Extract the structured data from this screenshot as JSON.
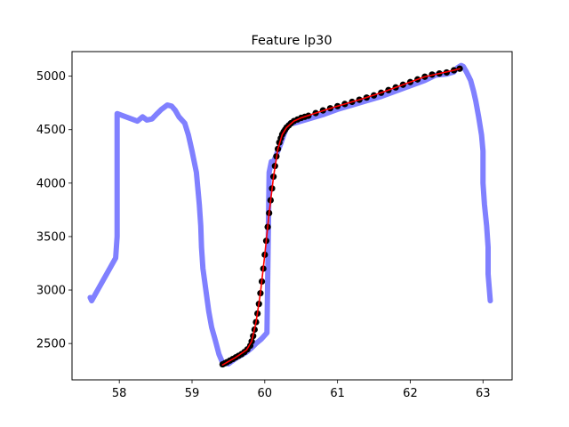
{
  "chart_data": {
    "type": "line",
    "title": "Feature lp30",
    "xlabel": "",
    "ylabel": "",
    "xlim": [
      57.35,
      63.4
    ],
    "ylim": [
      2160,
      5230
    ],
    "xticks": [
      58,
      59,
      60,
      61,
      62,
      63
    ],
    "yticks": [
      2500,
      3000,
      3500,
      4000,
      4500,
      5000
    ],
    "grid": false,
    "legend": "none",
    "series": [
      {
        "role": "trace",
        "style": "thick-line",
        "color": "#8080ff",
        "x": [
          57.6,
          57.62,
          57.95,
          57.97,
          57.97,
          58.25,
          58.32,
          58.38,
          58.45,
          58.52,
          58.58,
          58.66,
          58.72,
          58.77,
          58.82,
          58.9,
          58.95,
          59.0,
          59.03,
          59.06,
          59.1,
          59.12,
          59.13,
          59.15,
          59.17,
          59.2,
          59.23,
          59.27,
          59.32,
          59.37,
          59.42,
          59.5,
          59.6,
          59.7,
          59.75,
          59.82,
          59.88,
          59.95,
          60.03,
          60.06,
          60.09,
          60.12,
          60.15,
          60.18,
          60.22,
          60.26,
          60.3,
          60.35,
          60.4,
          60.5,
          60.6,
          60.8,
          61.0,
          61.2,
          61.4,
          61.6,
          61.8,
          62.0,
          62.2,
          62.35,
          62.5,
          62.6,
          62.65,
          62.7,
          62.73,
          62.78,
          62.83,
          62.87,
          62.9,
          62.94,
          62.98,
          63.0,
          63.0,
          63.02,
          63.05,
          63.07,
          63.07,
          63.1
        ],
        "y": [
          2930,
          2900,
          3300,
          3500,
          4650,
          4580,
          4620,
          4590,
          4600,
          4650,
          4690,
          4730,
          4720,
          4680,
          4620,
          4560,
          4450,
          4300,
          4200,
          4100,
          3800,
          3600,
          3400,
          3200,
          3100,
          2950,
          2800,
          2650,
          2530,
          2400,
          2320,
          2310,
          2360,
          2400,
          2420,
          2460,
          2500,
          2540,
          2600,
          4100,
          4200,
          4200,
          4250,
          4300,
          4370,
          4450,
          4520,
          4560,
          4560,
          4580,
          4600,
          4640,
          4690,
          4730,
          4770,
          4810,
          4860,
          4910,
          4960,
          5010,
          5020,
          5040,
          5080,
          5100,
          5090,
          5030,
          4960,
          4860,
          4770,
          4620,
          4450,
          4300,
          4000,
          3800,
          3600,
          3400,
          3150,
          2900
        ]
      },
      {
        "role": "samples",
        "style": "markers",
        "color": "#000000",
        "x": [
          59.42,
          59.45,
          59.48,
          59.52,
          59.56,
          59.6,
          59.64,
          59.68,
          59.72,
          59.76,
          59.8,
          59.82,
          59.84,
          59.86,
          59.88,
          59.9,
          59.92,
          59.94,
          59.96,
          59.98,
          60.0,
          60.02,
          60.04,
          60.06,
          60.08,
          60.1,
          60.12,
          60.14,
          60.16,
          60.18,
          60.2,
          60.22,
          60.24,
          60.26,
          60.28,
          60.3,
          60.33,
          60.36,
          60.4,
          60.45,
          60.5,
          60.55,
          60.6,
          60.7,
          60.8,
          60.9,
          61.0,
          61.1,
          61.2,
          61.3,
          61.4,
          61.5,
          61.6,
          61.7,
          61.8,
          61.9,
          62.0,
          62.1,
          62.2,
          62.3,
          62.4,
          62.5,
          62.6,
          62.68
        ],
        "y": [
          2305,
          2315,
          2325,
          2340,
          2355,
          2370,
          2385,
          2400,
          2420,
          2445,
          2480,
          2520,
          2570,
          2630,
          2700,
          2780,
          2870,
          2970,
          3080,
          3200,
          3330,
          3460,
          3590,
          3720,
          3840,
          3950,
          4060,
          4160,
          4250,
          4320,
          4380,
          4420,
          4455,
          4480,
          4500,
          4520,
          4540,
          4560,
          4580,
          4595,
          4610,
          4620,
          4630,
          4655,
          4680,
          4700,
          4720,
          4740,
          4760,
          4780,
          4800,
          4820,
          4845,
          4870,
          4895,
          4920,
          4945,
          4970,
          4995,
          5015,
          5025,
          5035,
          5055,
          5070
        ]
      },
      {
        "role": "fit",
        "style": "thin-line",
        "color": "#ff0000",
        "x": [
          59.42,
          59.6,
          59.75,
          59.82,
          59.88,
          59.94,
          60.0,
          60.06,
          60.12,
          60.18,
          60.24,
          60.3,
          60.4,
          60.5,
          60.7,
          61.0,
          61.3,
          61.6,
          61.9,
          62.2,
          62.4,
          62.6,
          62.68
        ],
        "y": [
          2300,
          2370,
          2440,
          2520,
          2700,
          2970,
          3330,
          3720,
          4060,
          4320,
          4455,
          4520,
          4580,
          4610,
          4655,
          4720,
          4780,
          4845,
          4920,
          4995,
          5025,
          5055,
          5070
        ]
      }
    ]
  }
}
